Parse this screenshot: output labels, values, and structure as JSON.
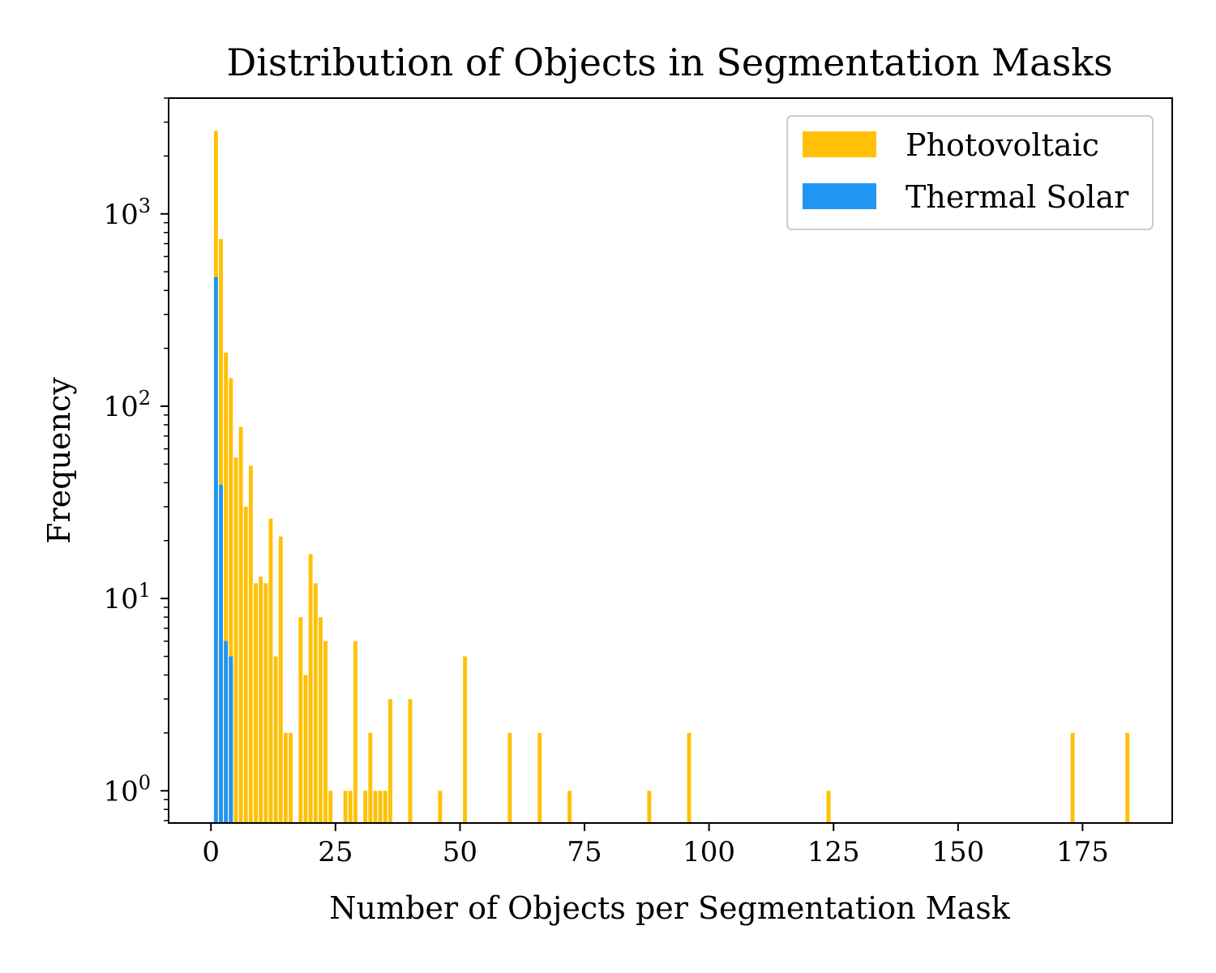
{
  "chart_data": {
    "type": "bar",
    "title": "Distribution of Objects in Segmentation Masks",
    "xlabel": "Number of Objects per Segmentation Mask",
    "ylabel": "Frequency",
    "xlim": [
      -8.5,
      193
    ],
    "ylim": [
      0.68,
      4000
    ],
    "yscale": "log",
    "xticks": [
      0,
      25,
      50,
      75,
      100,
      125,
      150,
      175
    ],
    "yticks": [
      1,
      10,
      100,
      1000
    ],
    "ytick_labels": [
      {
        "base": "10",
        "exp": "0"
      },
      {
        "base": "10",
        "exp": "1"
      },
      {
        "base": "10",
        "exp": "2"
      },
      {
        "base": "10",
        "exp": "3"
      }
    ],
    "grid": false,
    "legend": {
      "position": "top-right"
    },
    "series": [
      {
        "name": "Photovoltaic",
        "color": "#FFC107",
        "x": [
          1,
          2,
          3,
          4,
          5,
          6,
          7,
          8,
          9,
          10,
          11,
          12,
          13,
          14,
          15,
          16,
          18,
          19,
          20,
          21,
          22,
          23,
          24,
          27,
          28,
          29,
          31,
          32,
          33,
          34,
          35,
          36,
          40,
          46,
          51,
          60,
          66,
          72,
          88,
          96,
          124,
          173,
          184
        ],
        "values": [
          2700,
          740,
          190,
          140,
          54,
          78,
          30,
          49,
          12,
          13,
          12,
          26,
          5,
          21,
          2,
          2,
          8,
          4,
          17,
          12,
          8,
          6,
          1,
          1,
          1,
          6,
          1,
          2,
          1,
          1,
          1,
          3,
          3,
          1,
          5,
          2,
          2,
          1,
          1,
          2,
          1,
          2,
          2
        ]
      },
      {
        "name": "Thermal Solar",
        "color": "#2196F3",
        "x": [
          1,
          2,
          3,
          4
        ],
        "values": [
          470,
          39,
          6,
          5
        ]
      }
    ]
  }
}
